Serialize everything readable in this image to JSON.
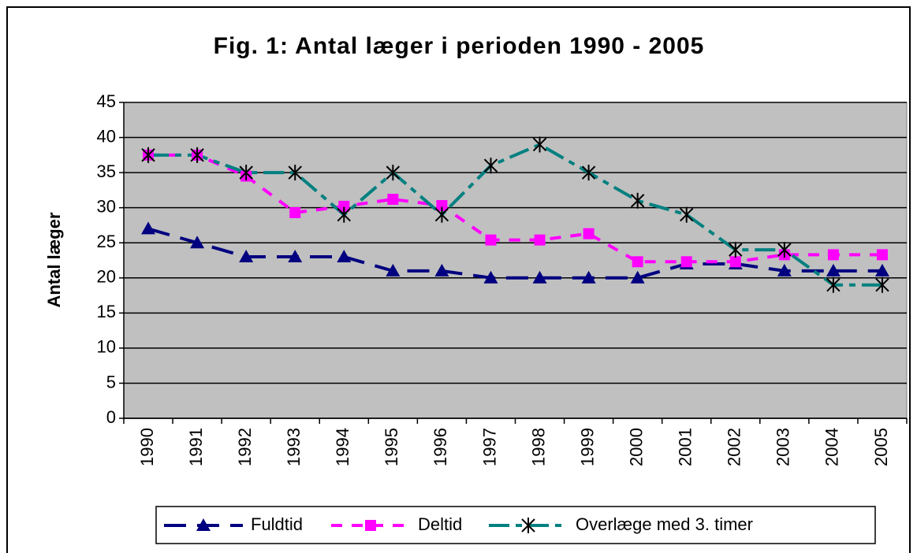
{
  "chart_data": {
    "type": "line",
    "title": "Fig. 1: Antal læger i perioden 1990 - 2005",
    "y_label": "Antal læger",
    "categories": [
      "1990",
      "1991",
      "1992",
      "1993",
      "1994",
      "1995",
      "1996",
      "1997",
      "1998",
      "1999",
      "2000",
      "2001",
      "2002",
      "2003",
      "2004",
      "2005"
    ],
    "series": [
      {
        "name": "Fuldtid",
        "color": "#000080",
        "marker": "triangle",
        "values": [
          27,
          25,
          23,
          23,
          23,
          21,
          21,
          20,
          20,
          20,
          20,
          22,
          22,
          21,
          21,
          21
        ]
      },
      {
        "name": "Deltid",
        "color": "#ff00ff",
        "marker": "square",
        "values": [
          37.5,
          37.5,
          34.5,
          29.3,
          30.2,
          31.2,
          30.3,
          25.4,
          25.4,
          26.3,
          22.3,
          22.3,
          22.3,
          23.3,
          23.3,
          23.3
        ]
      },
      {
        "name": "Overlæge med 3. timer",
        "color": "#008080",
        "marker": "star",
        "values": [
          37.5,
          37.5,
          35,
          35,
          29,
          35,
          29,
          36,
          39,
          35,
          31,
          29,
          24,
          24,
          19,
          19
        ]
      }
    ],
    "ylim": [
      0,
      45
    ],
    "yticks": [
      0,
      5,
      10,
      15,
      20,
      25,
      30,
      35,
      40,
      45
    ],
    "grid": true,
    "plot_background": "#c0c0c0"
  }
}
